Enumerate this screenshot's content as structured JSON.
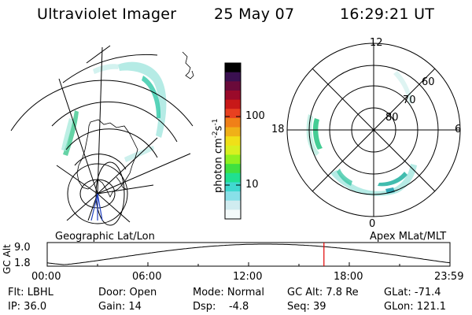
{
  "header": {
    "instrument": "Ultraviolet Imager",
    "date": "25 May 07",
    "time": "16:29:21 UT"
  },
  "colorbar": {
    "label_main": "photon cm",
    "label_exp1": "-2",
    "label_mid": "s",
    "label_exp2": "-1",
    "ticks": [
      "100",
      "10"
    ],
    "colors": [
      "#000000",
      "#3a1050",
      "#6a0a3a",
      "#9a0a2a",
      "#c81818",
      "#e84020",
      "#f08018",
      "#f0b018",
      "#f0e018",
      "#d8f020",
      "#90f020",
      "#40e040",
      "#20e090",
      "#40d8d0",
      "#88e0e8",
      "#d0ecf0",
      "#f4fafa"
    ]
  },
  "geographic": {
    "label": "Geographic Lat/Lon"
  },
  "polar": {
    "label": "Apex MLat/MLT",
    "mlt_labels": [
      "12",
      "18",
      "6",
      "0"
    ],
    "lat_labels": [
      "60",
      "70",
      "80"
    ]
  },
  "altitude_plot": {
    "ylabel": "GC Alt",
    "ymax_label": "9.0",
    "ymin_label": "1.8",
    "xticks": [
      "00:00",
      "06:00",
      "12:00",
      "18:00",
      "23:59"
    ],
    "current_marker_hour": 16.49,
    "marker_color": "#e00000"
  },
  "info": {
    "flt": "Flt: LBHL",
    "ip": "IP: 36.0",
    "door": "Door: Open",
    "gain": "Gain: 14",
    "mode": "Mode: Normal",
    "dsp": "Dsp:    -4.8",
    "gcalt": "GC Alt: 7.8 Re",
    "seq": "Seq: 39",
    "glat": "GLat: -71.4",
    "glon": "GLon: 121.1"
  }
}
